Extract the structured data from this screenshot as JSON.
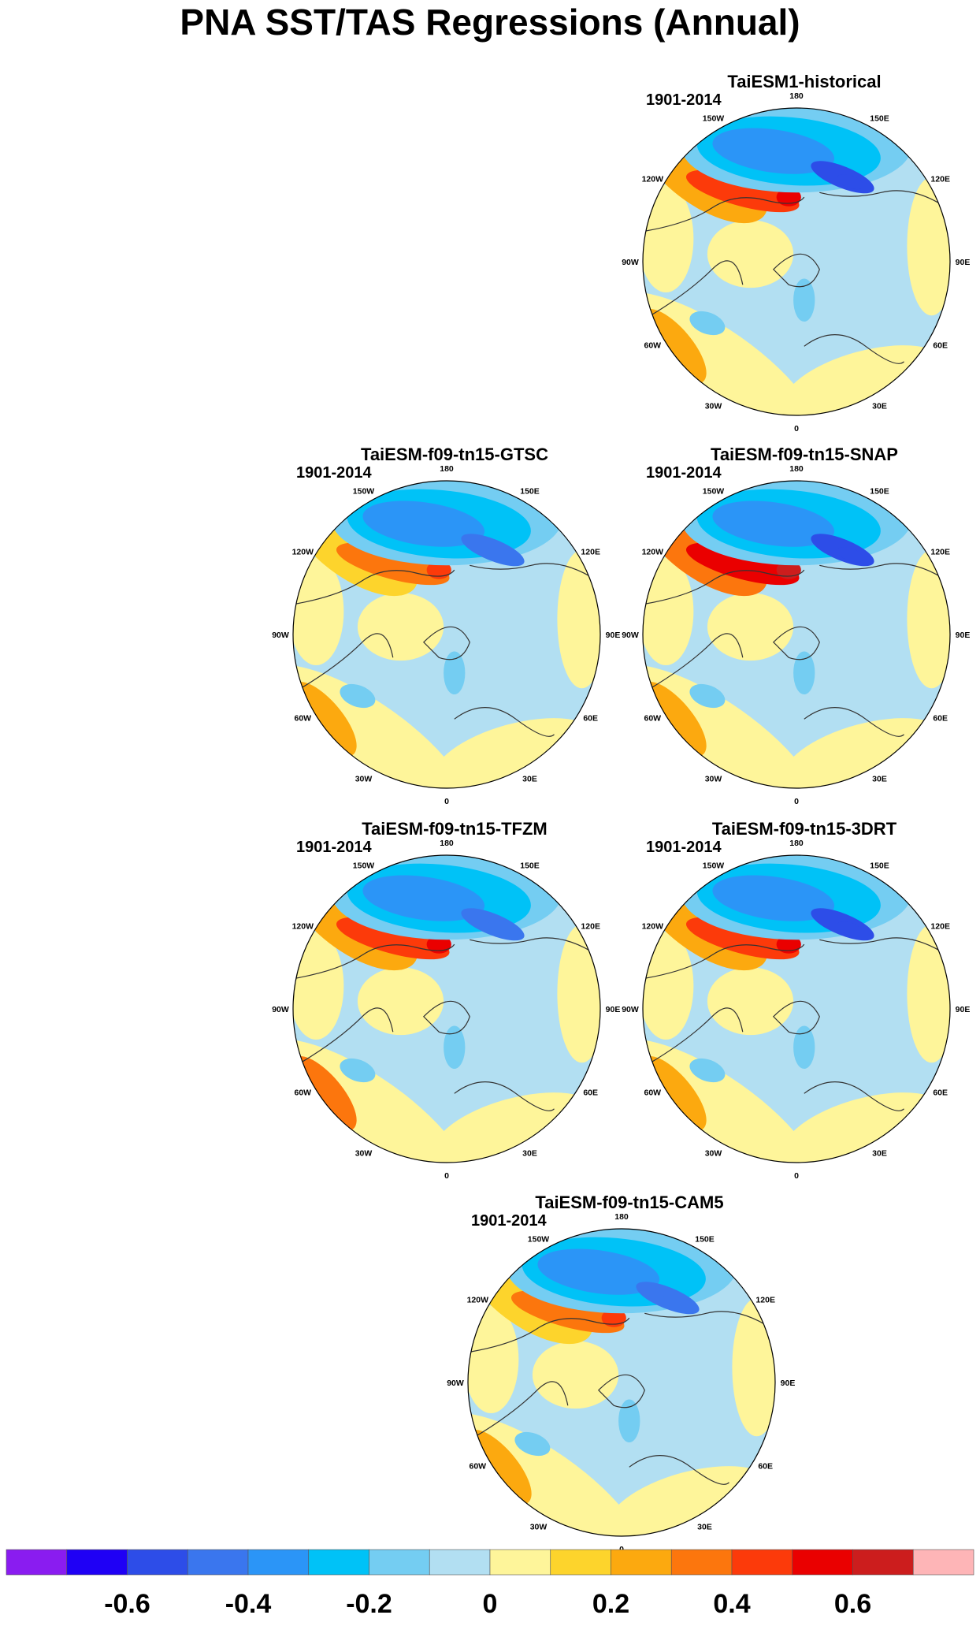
{
  "title": "PNA SST/TAS Regressions (Annual)",
  "chart_data": {
    "type": "heatmap",
    "projection": "polar stereographic (Northern Hemisphere)",
    "title": "PNA SST/TAS Regressions (Annual)",
    "longitude_labels": [
      "180",
      "150E",
      "120E",
      "90E",
      "60E",
      "30E",
      "0",
      "30W",
      "60W",
      "90W",
      "120W",
      "150W"
    ],
    "panels": [
      {
        "name": "TaiESM1-historical",
        "period": "1901-2014",
        "pattern": {
          "pac_cold": -0.6,
          "pac_warm": 0.4,
          "atl_cold": -0.2,
          "atl_warm": 0.2
        }
      },
      {
        "name": "TaiESM-f09-tn15-GTSC",
        "period": "1901-2014",
        "pattern": {
          "pac_cold": -0.5,
          "pac_warm": 0.3,
          "atl_cold": -0.2,
          "atl_warm": 0.2
        }
      },
      {
        "name": "TaiESM-f09-tn15-SNAP",
        "period": "1901-2014",
        "pattern": {
          "pac_cold": -0.6,
          "pac_warm": 0.5,
          "atl_cold": -0.2,
          "atl_warm": 0.2
        }
      },
      {
        "name": "TaiESM-f09-tn15-TFZM",
        "period": "1901-2014",
        "pattern": {
          "pac_cold": -0.5,
          "pac_warm": 0.4,
          "atl_cold": -0.2,
          "atl_warm": 0.3
        }
      },
      {
        "name": "TaiESM-f09-tn15-3DRT",
        "period": "1901-2014",
        "pattern": {
          "pac_cold": -0.6,
          "pac_warm": 0.4,
          "atl_cold": -0.2,
          "atl_warm": 0.2
        }
      },
      {
        "name": "TaiESM-f09-tn15-CAM5",
        "period": "1901-2014",
        "pattern": {
          "pac_cold": -0.5,
          "pac_warm": 0.3,
          "atl_cold": -0.2,
          "atl_warm": 0.2
        }
      }
    ],
    "colorbar": {
      "levels": [
        -0.7,
        -0.6,
        -0.5,
        -0.4,
        -0.3,
        -0.2,
        -0.1,
        0,
        0.1,
        0.2,
        0.3,
        0.4,
        0.5,
        0.6,
        0.7
      ],
      "colors": [
        "#8a1cf0",
        "#1f00f5",
        "#2d4de8",
        "#3a76ee",
        "#2b95f7",
        "#00c2f7",
        "#74cdf2",
        "#b2dff2",
        "#fef59a",
        "#fdd42c",
        "#fca90f",
        "#fc760d",
        "#fc3a0a",
        "#ea0000",
        "#cc1d1d",
        "#feb5b7"
      ],
      "tick_values": [
        -0.6,
        -0.4,
        -0.2,
        0,
        0.2,
        0.4,
        0.6
      ],
      "tick_labels": [
        "-0.6",
        "-0.4",
        "-0.2",
        "0",
        "0.2",
        "0.4",
        "0.6"
      ]
    }
  }
}
